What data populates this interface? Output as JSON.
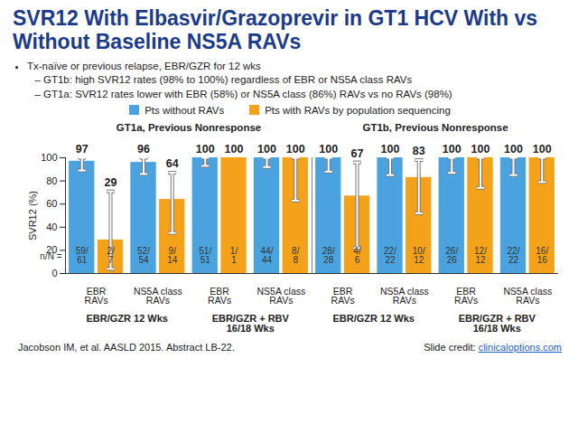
{
  "chart_data": {
    "type": "bar",
    "title": "SVR12 With Elbasvir/Grazoprevir in GT1 HCV With vs Without Baseline NS5A RAVs",
    "bullets": [
      {
        "text": "Tx-naïve or previous relapse, EBR/GZR for 12 wks",
        "sub": [
          "GT1b: high SVR12 rates (98% to 100%) regardless of EBR or NS5A class RAVs",
          "GT1a: SVR12 rates lower with EBR (58%) or NS5A class (86%) RAVs vs no RAVs (98%)"
        ]
      }
    ],
    "panels": [
      "GT1a, Previous Nonresponse",
      "GT1b, Previous Nonresponse"
    ],
    "regimens": [
      "EBR/GZR 12 Wks",
      "EBR/GZR + RBV 16/18 Wks",
      "EBR/GZR 12 Wks",
      "EBR/GZR + RBV 16/18 Wks"
    ],
    "categories": [
      "EBR RAVs",
      "NS5A class RAVs",
      "EBR RAVs",
      "NS5A class RAVs",
      "EBR RAVs",
      "NS5A class RAVs",
      "EBR RAVs",
      "NS5A class RAVs"
    ],
    "series": [
      {
        "name": "Pts without RAVs",
        "color": "#4aa3df",
        "values": [
          97,
          96,
          100,
          100,
          100,
          100,
          100,
          100
        ],
        "n_labels": [
          "59/61",
          "52/54",
          "51/51",
          "44/44",
          "28/28",
          "22/22",
          "26/26",
          "22/22"
        ],
        "ci_low": [
          89,
          86,
          93,
          92,
          88,
          85,
          87,
          85
        ],
        "ci_high": [
          100,
          100,
          100,
          100,
          100,
          100,
          100,
          100
        ]
      },
      {
        "name": "Pts with RAVs by population sequencing",
        "color": "#f5a21b",
        "values": [
          29,
          64,
          100,
          100,
          67,
          83,
          100,
          100
        ],
        "n_labels": [
          "2/7",
          "9/14",
          "1/1",
          "8/8",
          "4/6",
          "10/12",
          "12/12",
          "16/16"
        ],
        "ci_low": [
          4,
          35,
          null,
          63,
          22,
          52,
          74,
          79
        ],
        "ci_high": [
          71,
          87,
          null,
          100,
          96,
          98,
          100,
          100
        ]
      }
    ],
    "n_label": "n/N =",
    "ylabel": "SVR12 (%)",
    "ylim": [
      0,
      100
    ],
    "yticks": [
      0,
      20,
      40,
      60,
      80,
      100
    ],
    "data_labels": true,
    "source": "Jacobson IM, et al. AASLD 2015. Abstract LB-22.",
    "credit": [
      "Slide credit:",
      "clinicaloptions.com"
    ]
  }
}
